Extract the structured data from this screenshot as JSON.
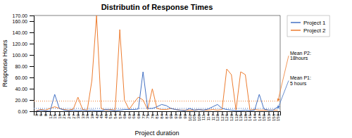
{
  "chart_data": {
    "type": "line",
    "title": "Distributin of Response Times",
    "x_label": "Project duration",
    "y_label": "Response Hours",
    "categories": [
      "3",
      "6",
      "9",
      "12",
      "15",
      "18",
      "21",
      "24",
      "27",
      "30",
      "33",
      "36",
      "39",
      "42",
      "45",
      "48",
      "51",
      "54",
      "57",
      "60",
      "63",
      "66",
      "69",
      "72",
      "75",
      "78",
      "81",
      "84",
      "87",
      "90",
      "93",
      "96",
      "99",
      "102",
      "105",
      "108",
      "111",
      "114",
      "117",
      "120",
      "123",
      "126",
      "129",
      "132",
      "135",
      "138",
      "141",
      "144",
      "147",
      "150",
      "153",
      "156",
      "159"
    ],
    "series": [
      {
        "name": "Project 1",
        "color": "#4472C4",
        "mean": 5,
        "annotation": "Mean P1:\n5 hours",
        "values": [
          0,
          2,
          1,
          0,
          30,
          5,
          2,
          1,
          2,
          1,
          2,
          1,
          2,
          1,
          1,
          3,
          2,
          1,
          2,
          3,
          3,
          3,
          4,
          70,
          5,
          5,
          8,
          12,
          10,
          5,
          3,
          2,
          1,
          5,
          2,
          3,
          2,
          4,
          8,
          12,
          5,
          3,
          2,
          1,
          1,
          2,
          1,
          2,
          30,
          4,
          2,
          2,
          8
        ]
      },
      {
        "name": "Project 2",
        "color": "#ED7D31",
        "mean": 18,
        "annotation": "Mean P2:\n18hours",
        "values": [
          1,
          3,
          2,
          5,
          8,
          5,
          3,
          2,
          4,
          25,
          3,
          2,
          55,
          170,
          5,
          2,
          3,
          2,
          145,
          20,
          3,
          15,
          25,
          20,
          3,
          40,
          5,
          3,
          3,
          5,
          3,
          2,
          2,
          2,
          2,
          3,
          2,
          2,
          3,
          2,
          3,
          75,
          65,
          2,
          70,
          65,
          2,
          3,
          2,
          2,
          2,
          2,
          2
        ]
      }
    ],
    "ylim": [
      0,
      170
    ],
    "yticks": [
      {
        "value": 0,
        "label": "0.00"
      },
      {
        "value": 20,
        "label": "20.00"
      },
      {
        "value": 40,
        "label": "40.00"
      },
      {
        "value": 60,
        "label": "60.00"
      },
      {
        "value": 80,
        "label": "80.00"
      },
      {
        "value": 100,
        "label": "100.00"
      },
      {
        "value": 120,
        "label": "120.00"
      },
      {
        "value": 140,
        "label": "140.00"
      },
      {
        "value": 160,
        "label": "160.00"
      },
      {
        "value": 170,
        "label": "170.00"
      }
    ],
    "grid": false,
    "legend": "right"
  }
}
